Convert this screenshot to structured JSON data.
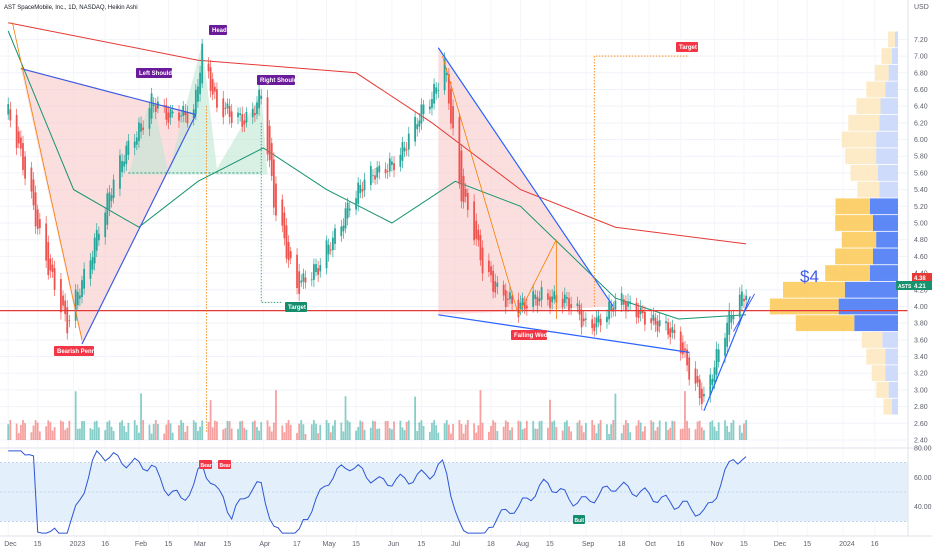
{
  "symbol": {
    "title": "AST SpaceMobile, Inc., 1D, NASDAQ, Heikin Ashi",
    "ticker": "ASTS",
    "currency": "USD"
  },
  "colors": {
    "up": "#26a69a",
    "down": "#ef5350",
    "ma_red": "#e53935",
    "ma_green": "#17936f",
    "trend_blue": "#3f5ae6",
    "wedge_blue": "#2962ff",
    "horizontal_red": "#e53935",
    "pattern_fill_red": "#f8c9c9",
    "pattern_fill_green": "#bfe6d3",
    "rsi": "#2d55d4",
    "rsi_band": "#e3f0fb",
    "tag_red": "#f23645",
    "tag_green": "#138d6b",
    "tag_purple": "#6a1b9a",
    "vp_yellow": "#fbcb5d",
    "vp_yellow_light": "#fde8c0",
    "vp_blue": "#4b7bf5",
    "vp_blue_light": "#c9d7fb",
    "price_badge": "#e53935",
    "current_badge": "#17936f"
  },
  "annotations": {
    "head": "Head",
    "left_shoulder": "Left Shoulder",
    "right_shoulder": "Right Shoulder",
    "bearish_pennant": "Bearish Pennant",
    "falling_wedge": "Falling Wedge",
    "target_upper": "Target",
    "target_lower": "Target",
    "price_target": "$4",
    "rsi_bear_1": "Bear",
    "rsi_bear_2": "Bear",
    "rsi_bull": "Bull"
  },
  "badges": {
    "price_tag": "4.38",
    "current_price": "4.21",
    "ticker_badge": "ASTS"
  },
  "chart_data": [
    {
      "type": "candlestick",
      "title": "AST SpaceMobile, Inc., 1D, NASDAQ, Heikin Ashi",
      "ylim": [
        2.4,
        7.6
      ],
      "y_ticks": [
        "7.20",
        "7.00",
        "6.80",
        "6.60",
        "6.40",
        "6.20",
        "6.00",
        "5.80",
        "5.60",
        "5.40",
        "5.20",
        "5.00",
        "4.80",
        "4.60",
        "4.40",
        "4.20",
        "4.00",
        "3.80",
        "3.60",
        "3.40",
        "3.20",
        "3.00",
        "2.80",
        "2.60",
        "2.40"
      ],
      "x_ticks": [
        "Dec",
        "15",
        "2023",
        "16",
        "Feb",
        "15",
        "Mar",
        "15",
        "Apr",
        "17",
        "May",
        "15",
        "Jun",
        "15",
        "Jul",
        "18",
        "Aug",
        "15",
        "Sep",
        "18",
        "Oct",
        "16",
        "Nov",
        "15",
        "Dec",
        "15",
        "2024",
        "16"
      ],
      "price_path": [
        {
          "date": "2022-12-01",
          "close": 6.3
        },
        {
          "date": "2022-12-15",
          "close": 5.0
        },
        {
          "date": "2022-12-29",
          "close": 3.7
        },
        {
          "date": "2023-01-13",
          "close": 5.0
        },
        {
          "date": "2023-01-27",
          "close": 5.9
        },
        {
          "date": "2023-02-07",
          "close": 6.5
        },
        {
          "date": "2023-02-15",
          "close": 6.2
        },
        {
          "date": "2023-02-27",
          "close": 6.4
        },
        {
          "date": "2023-03-03",
          "close": 7.1
        },
        {
          "date": "2023-03-10",
          "close": 6.3
        },
        {
          "date": "2023-03-24",
          "close": 6.3
        },
        {
          "date": "2023-03-31",
          "close": 6.5
        },
        {
          "date": "2023-04-06",
          "close": 5.2
        },
        {
          "date": "2023-04-17",
          "close": 4.3
        },
        {
          "date": "2023-04-27",
          "close": 4.4
        },
        {
          "date": "2023-05-12",
          "close": 5.3
        },
        {
          "date": "2023-05-26",
          "close": 5.6
        },
        {
          "date": "2023-06-09",
          "close": 6.0
        },
        {
          "date": "2023-06-20",
          "close": 6.5
        },
        {
          "date": "2023-06-26",
          "close": 7.0
        },
        {
          "date": "2023-07-03",
          "close": 5.4
        },
        {
          "date": "2023-07-14",
          "close": 4.5
        },
        {
          "date": "2023-07-31",
          "close": 3.9
        },
        {
          "date": "2023-08-11",
          "close": 4.2
        },
        {
          "date": "2023-08-18",
          "close": 4.1
        },
        {
          "date": "2023-09-01",
          "close": 3.8
        },
        {
          "date": "2023-09-15",
          "close": 4.0
        },
        {
          "date": "2023-09-29",
          "close": 3.95
        },
        {
          "date": "2023-10-16",
          "close": 3.5
        },
        {
          "date": "2023-10-27",
          "close": 2.9
        },
        {
          "date": "2023-11-03",
          "close": 3.4
        },
        {
          "date": "2023-11-10",
          "close": 4.0
        },
        {
          "date": "2023-11-16",
          "close": 4.25
        }
      ],
      "moving_average_red": [
        {
          "date": "2022-12-01",
          "value": 7.4
        },
        {
          "date": "2023-03-01",
          "value": 6.95
        },
        {
          "date": "2023-05-15",
          "value": 6.8
        },
        {
          "date": "2023-06-20",
          "value": 6.2
        },
        {
          "date": "2023-08-01",
          "value": 5.4
        },
        {
          "date": "2023-09-15",
          "value": 4.95
        },
        {
          "date": "2023-11-16",
          "value": 4.75
        }
      ],
      "moving_average_green": [
        {
          "date": "2022-12-01",
          "value": 7.3
        },
        {
          "date": "2023-01-01",
          "value": 5.4
        },
        {
          "date": "2023-02-01",
          "value": 4.95
        },
        {
          "date": "2023-03-01",
          "value": 5.5
        },
        {
          "date": "2023-04-01",
          "value": 5.9
        },
        {
          "date": "2023-05-01",
          "value": 5.4
        },
        {
          "date": "2023-06-01",
          "value": 5.0
        },
        {
          "date": "2023-07-01",
          "value": 5.5
        },
        {
          "date": "2023-08-01",
          "value": 5.2
        },
        {
          "date": "2023-09-15",
          "value": 4.1
        },
        {
          "date": "2023-10-15",
          "value": 3.85
        },
        {
          "date": "2023-11-16",
          "value": 3.9
        }
      ],
      "horizontal_level": 3.95,
      "rsi": {
        "ylim": [
          20,
          80
        ],
        "y_ticks": [
          "80.00",
          "60.00",
          "40.00"
        ],
        "band": [
          30,
          70
        ]
      },
      "volume_profile_bins": [
        {
          "price": 7.2,
          "up": 0.1,
          "down": 0.05
        },
        {
          "price": 7.0,
          "up": 0.15,
          "down": 0.1
        },
        {
          "price": 6.8,
          "up": 0.2,
          "down": 0.15
        },
        {
          "price": 6.6,
          "up": 0.28,
          "down": 0.2
        },
        {
          "price": 6.4,
          "up": 0.35,
          "down": 0.28
        },
        {
          "price": 6.2,
          "up": 0.45,
          "down": 0.3
        },
        {
          "price": 6.0,
          "up": 0.5,
          "down": 0.35
        },
        {
          "price": 5.8,
          "up": 0.45,
          "down": 0.35
        },
        {
          "price": 5.6,
          "up": 0.4,
          "down": 0.32
        },
        {
          "price": 5.4,
          "up": 0.32,
          "down": 0.3
        },
        {
          "price": 5.2,
          "up": 0.5,
          "down": 0.45
        },
        {
          "price": 5.0,
          "up": 0.55,
          "down": 0.4
        },
        {
          "price": 4.8,
          "up": 0.5,
          "down": 0.35
        },
        {
          "price": 4.6,
          "up": 0.55,
          "down": 0.4
        },
        {
          "price": 4.4,
          "up": 0.65,
          "down": 0.45
        },
        {
          "price": 4.2,
          "up": 0.9,
          "down": 0.85
        },
        {
          "price": 4.0,
          "up": 1.0,
          "down": 0.95
        },
        {
          "price": 3.8,
          "up": 0.85,
          "down": 0.7
        },
        {
          "price": 3.6,
          "up": 0.3,
          "down": 0.25
        },
        {
          "price": 3.4,
          "up": 0.28,
          "down": 0.2
        },
        {
          "price": 3.2,
          "up": 0.2,
          "down": 0.2
        },
        {
          "price": 3.0,
          "up": 0.18,
          "down": 0.15
        },
        {
          "price": 2.8,
          "up": 0.12,
          "down": 0.1
        }
      ]
    }
  ]
}
